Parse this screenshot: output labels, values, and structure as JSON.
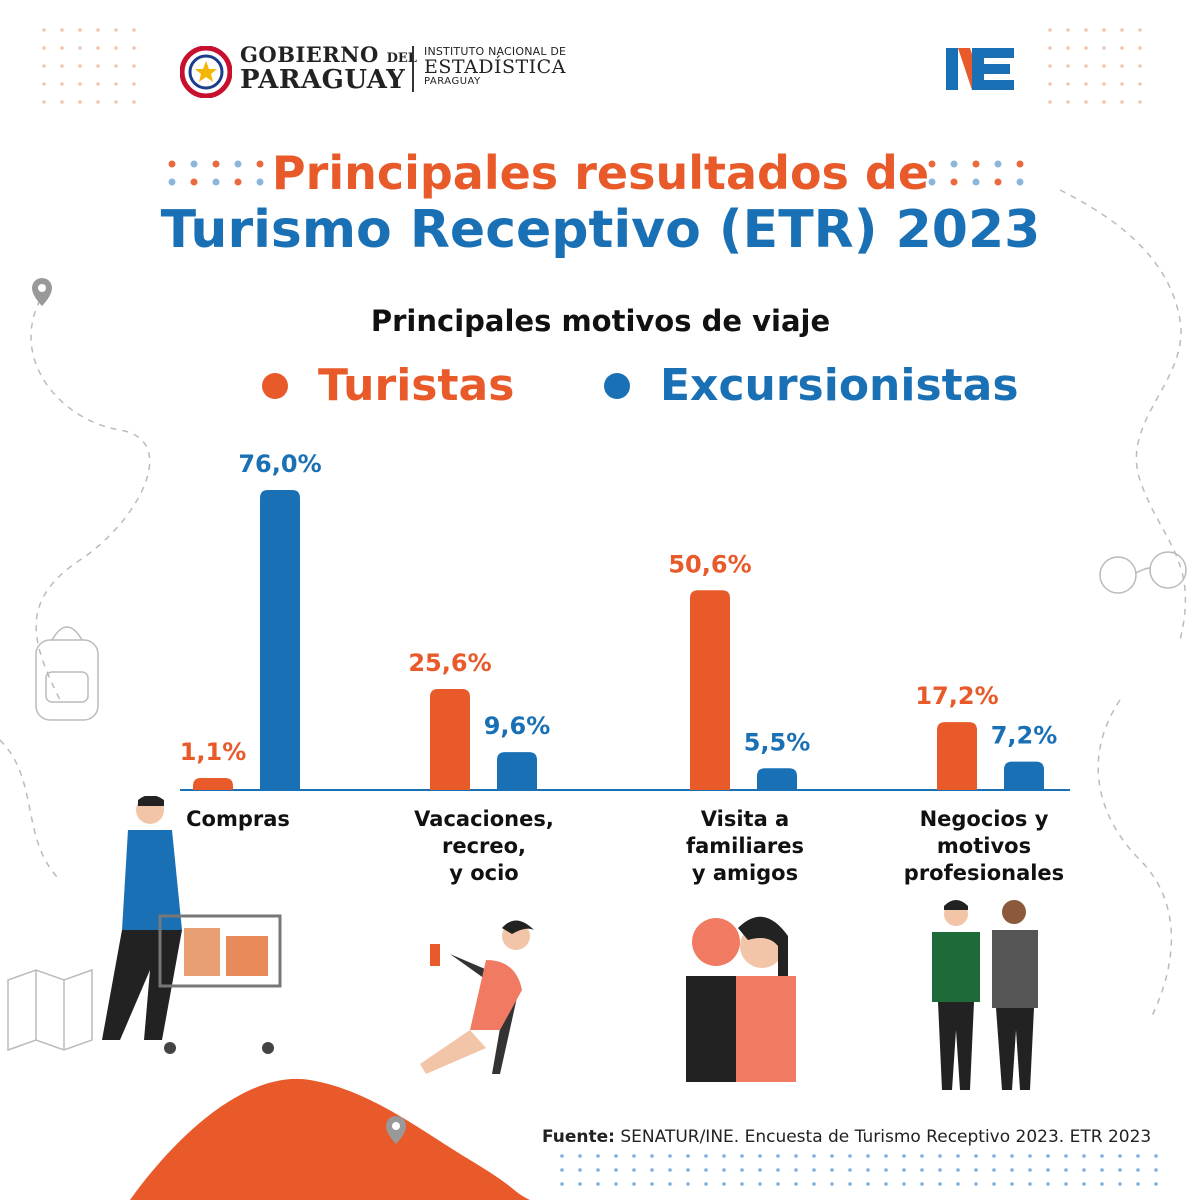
{
  "header": {
    "gov_line1": "GOBIERNO",
    "gov_line1_small": "DEL",
    "gov_line2": "PARAGUAY",
    "ine_line1": "INSTITUTO NACIONAL DE",
    "ine_line2": "ESTADÍSTICA",
    "ine_line3": "PARAGUAY"
  },
  "title_line1": "Principales resultados de",
  "title_line2": "Turismo Receptivo (ETR) 2023",
  "subtitle": "Principales motivos de viaje",
  "colors": {
    "turistas": "#e85a2a",
    "excursionistas": "#1a70b5"
  },
  "chart_data": {
    "type": "bar",
    "title": "Principales motivos de viaje",
    "categories": [
      "Compras",
      "Vacaciones, recreo, y ocio",
      "Visita a familiares y amigos",
      "Negocios y motivos profesionales"
    ],
    "category_lines": [
      [
        "Compras"
      ],
      [
        "Vacaciones,",
        "recreo,",
        "y ocio"
      ],
      [
        "Visita a",
        "familiares",
        "y amigos"
      ],
      [
        "Negocios y",
        "motivos",
        "profesionales"
      ]
    ],
    "series": [
      {
        "name": "Turistas",
        "values": [
          1.1,
          25.6,
          50.6,
          17.2
        ],
        "labels": [
          "1,1%",
          "25,6%",
          "50,6%",
          "17,2%"
        ]
      },
      {
        "name": "Excursionistas",
        "values": [
          76.0,
          9.6,
          5.5,
          7.2
        ],
        "labels": [
          "76,0%",
          "9,6%",
          "5,5%",
          "7,2%"
        ]
      }
    ],
    "ylim": [
      0,
      80
    ],
    "legend": "top-center",
    "grid": false
  },
  "source_label": "Fuente:",
  "source_text": "SENATUR/INE. Encuesta de Turismo Receptivo 2023. ETR 2023"
}
